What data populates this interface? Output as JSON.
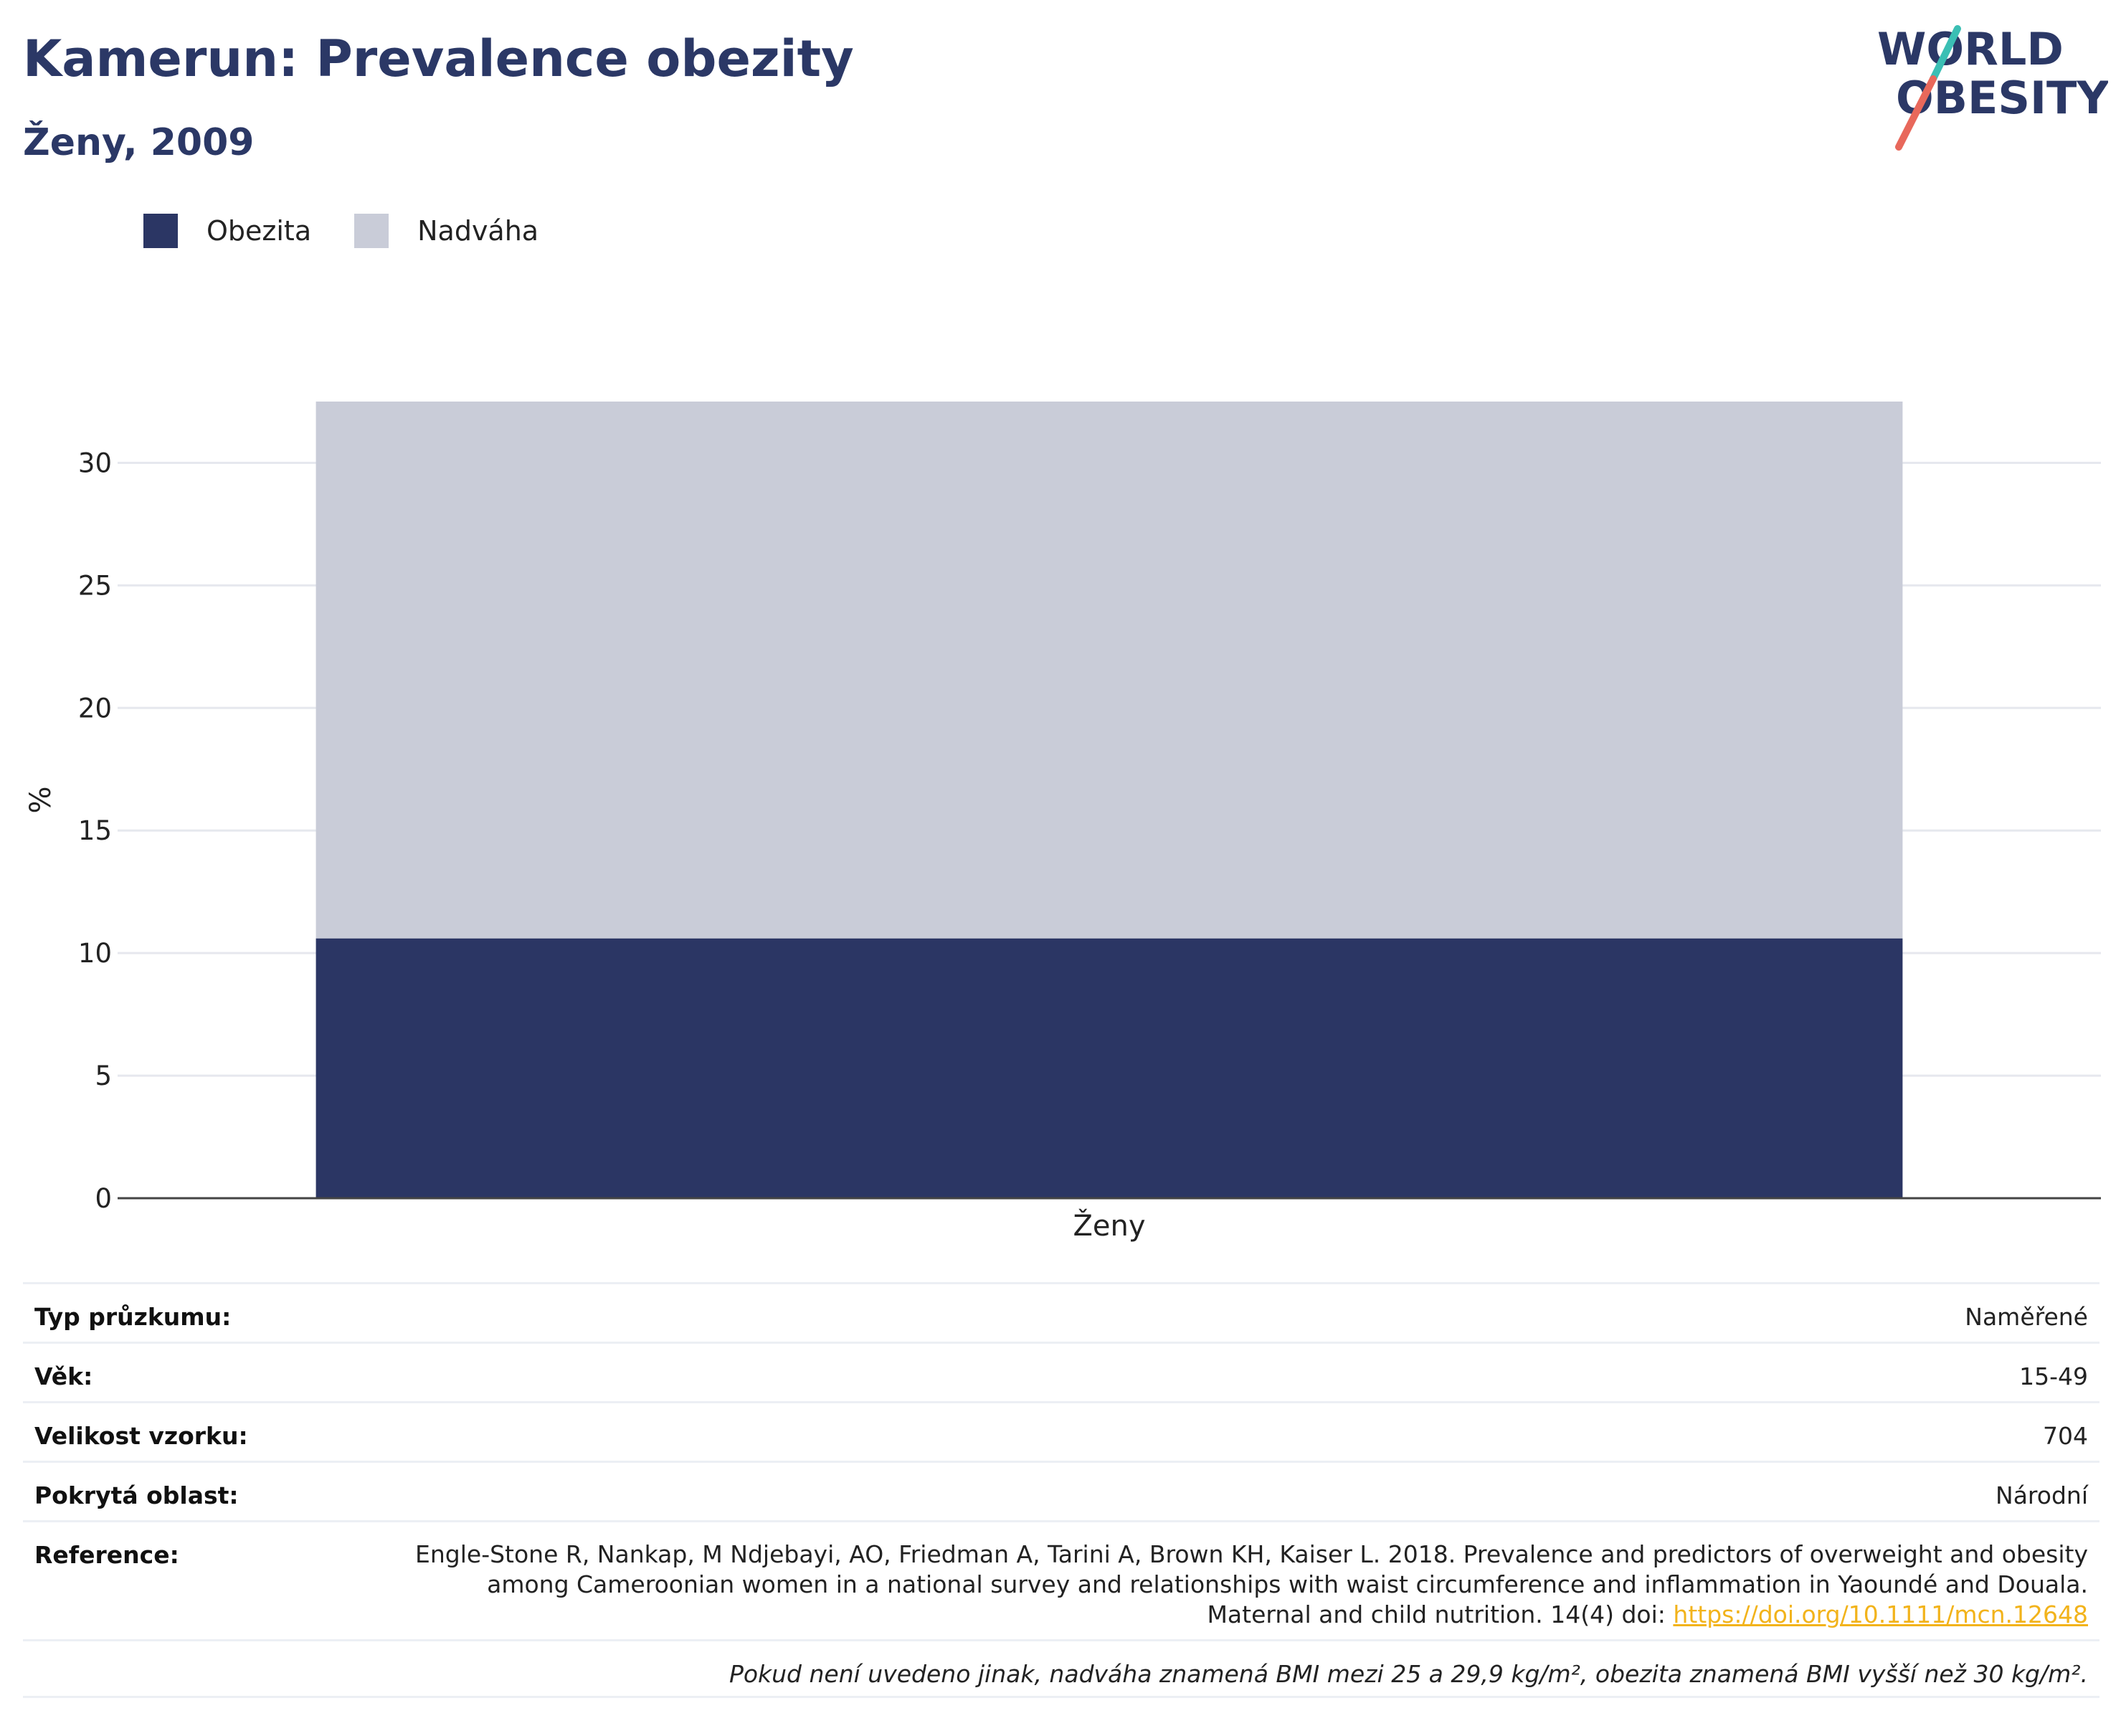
{
  "header": {
    "title": "Kamerun: Prevalence obezity",
    "subtitle": "Ženy, 2009"
  },
  "logo": {
    "line1": "WORLD",
    "line2": "OBESITY",
    "colors": {
      "text": "#2b3866",
      "slash_top": "#3bbfb4",
      "slash_bottom": "#e8685b"
    }
  },
  "legend": [
    {
      "label": "Obezita",
      "color": "#2b3664"
    },
    {
      "label": "Nadváha",
      "color": "#c9ccd8"
    }
  ],
  "chart_data": {
    "type": "bar",
    "stacked": true,
    "categories": [
      "Ženy"
    ],
    "series": [
      {
        "name": "Obezita",
        "values": [
          10.6
        ],
        "color": "#2b3664"
      },
      {
        "name": "Nadváha",
        "values": [
          21.9
        ],
        "color": "#c9ccd8"
      }
    ],
    "ylabel": "%",
    "xlabel": "",
    "ylim": [
      0,
      32.5
    ],
    "yticks": [
      0,
      5,
      10,
      15,
      20,
      25,
      30
    ],
    "grid": true
  },
  "info": {
    "survey_type_label": "Typ průzkumu:",
    "survey_type_value": "Naměřené",
    "age_label": "Věk:",
    "age_value": "15-49",
    "sample_label": "Velikost vzorku:",
    "sample_value": "704",
    "area_label": "Pokrytá oblast:",
    "area_value": "Národní",
    "reference_label": "Reference:",
    "reference_text": "Engle-Stone R, Nankap, M Ndjebayi, AO, Friedman A, Tarini A, Brown KH, Kaiser L. 2018. Prevalence and predictors of overweight and obesity among Cameroonian women in a national survey and relationships with waist circumference and inflammation in Yaoundé and Douala. Maternal and child nutrition. 14(4) doi: ",
    "reference_link": "https://doi.org/10.1111/mcn.12648",
    "note": "Pokud není uvedeno jinak, nadváha znamená BMI mezi 25 a 29,9 kg/m², obezita znamená BMI vyšší než 30 kg/m²."
  }
}
